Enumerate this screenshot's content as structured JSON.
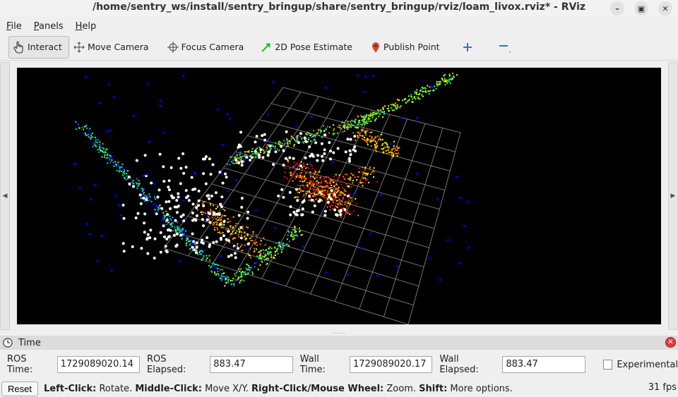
{
  "window": {
    "title": "/home/sentry_ws/install/sentry_bringup/share/sentry_bringup/rviz/loam_livox.rviz* - RViz",
    "buttons": [
      "minimize",
      "maximize",
      "close"
    ]
  },
  "menu": [
    {
      "label": "File",
      "underline": "F",
      "rest": "ile"
    },
    {
      "label": "Panels",
      "underline": "P",
      "rest": "anels"
    },
    {
      "label": "Help",
      "underline": "H",
      "rest": "elp"
    }
  ],
  "toolbar": {
    "interact": "Interact",
    "move_camera": "Move Camera",
    "focus_camera": "Focus Camera",
    "pose_estimate": "2D Pose Estimate",
    "publish_point": "Publish Point"
  },
  "time_panel": {
    "title": "Time",
    "ros_time_label": "ROS Time:",
    "ros_time_value": "1729089020.14",
    "ros_elapsed_label": "ROS Elapsed:",
    "ros_elapsed_value": "883.47",
    "wall_time_label": "Wall Time:",
    "wall_time_value": "1729089020.17",
    "wall_elapsed_label": "Wall Elapsed:",
    "wall_elapsed_value": "883.47",
    "experimental_label": "Experimental"
  },
  "status": {
    "reset_label": "Reset",
    "hint_1_key": "Left-Click:",
    "hint_1_text": " Rotate. ",
    "hint_2_key": "Middle-Click:",
    "hint_2_text": " Move X/Y. ",
    "hint_3_key": "Right-Click/Mouse Wheel:",
    "hint_3_text": " Zoom. ",
    "hint_4_key": "Shift:",
    "hint_4_text": " More options.",
    "fps": "31 fps"
  },
  "colors": {
    "viewport_bg": "#000000",
    "grid": "#8c8c8c",
    "point_palette": [
      "#0000ff",
      "#00a0ff",
      "#00ff80",
      "#80ff00",
      "#ffff00",
      "#ff8000",
      "#ff0000",
      "#ffffff"
    ]
  }
}
